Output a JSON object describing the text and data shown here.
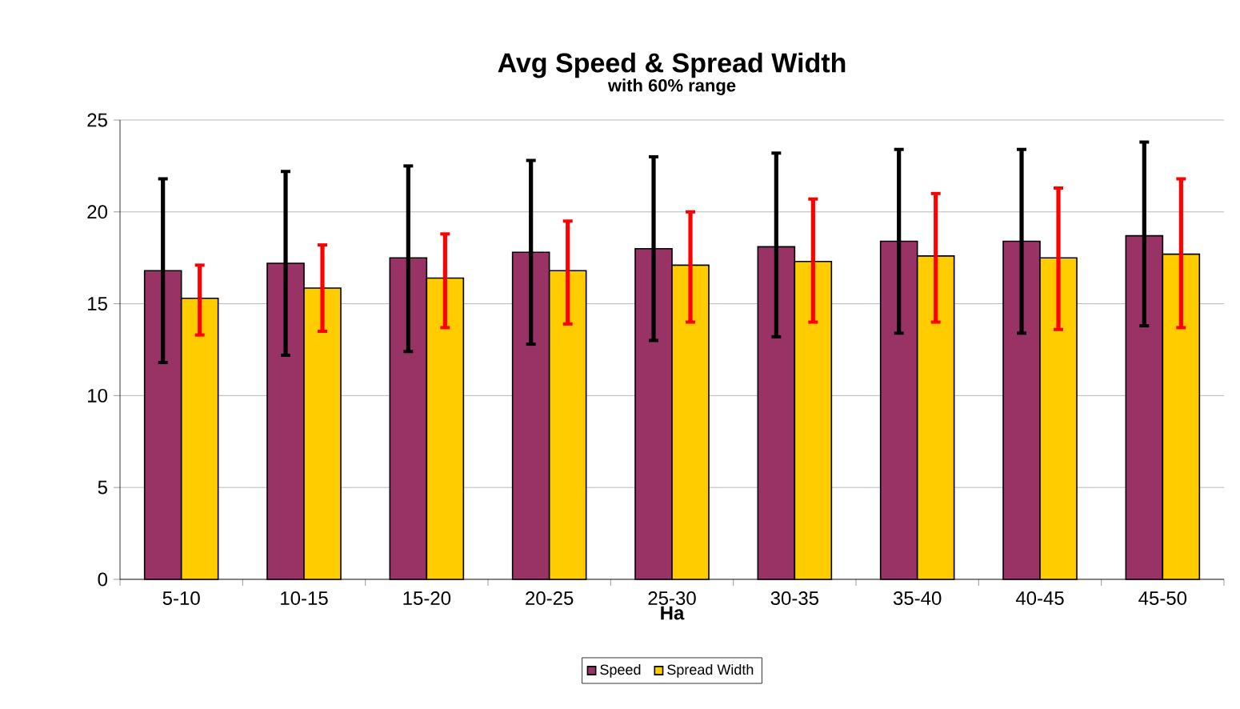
{
  "chart_data": {
    "type": "bar",
    "title": "Avg Speed & Spread Width",
    "subtitle": "with 60% range",
    "xlabel": "Ha",
    "categories": [
      "5-10",
      "10-15",
      "15-20",
      "20-25",
      "25-30",
      "30-35",
      "35-40",
      "40-45",
      "45-50"
    ],
    "series": [
      {
        "name": "Speed",
        "color": "#993366",
        "values": [
          16.8,
          17.2,
          17.5,
          17.8,
          18.0,
          18.1,
          18.4,
          18.4,
          18.7
        ],
        "errors": [
          [
            11.8,
            21.8
          ],
          [
            12.2,
            22.2
          ],
          [
            12.4,
            22.5
          ],
          [
            12.8,
            22.8
          ],
          [
            13.0,
            23.0
          ],
          [
            13.2,
            23.2
          ],
          [
            13.4,
            23.4
          ],
          [
            13.4,
            23.4
          ],
          [
            13.8,
            23.8
          ]
        ]
      },
      {
        "name": "Spread Width",
        "color": "#ffcc00",
        "values": [
          15.3,
          15.85,
          16.4,
          16.8,
          17.1,
          17.3,
          17.6,
          17.5,
          17.7
        ],
        "errors": [
          [
            13.3,
            17.1
          ],
          [
            13.5,
            18.2
          ],
          [
            13.7,
            18.8
          ],
          [
            13.9,
            19.5
          ],
          [
            14.0,
            20.0
          ],
          [
            14.0,
            20.7
          ],
          [
            14.0,
            21.0
          ],
          [
            13.6,
            21.3
          ],
          [
            13.7,
            21.8
          ]
        ]
      }
    ],
    "ylim": [
      0,
      25
    ],
    "yticks": [
      0,
      5,
      10,
      15,
      20,
      25
    ],
    "grid": "y",
    "legend": "bottom"
  }
}
